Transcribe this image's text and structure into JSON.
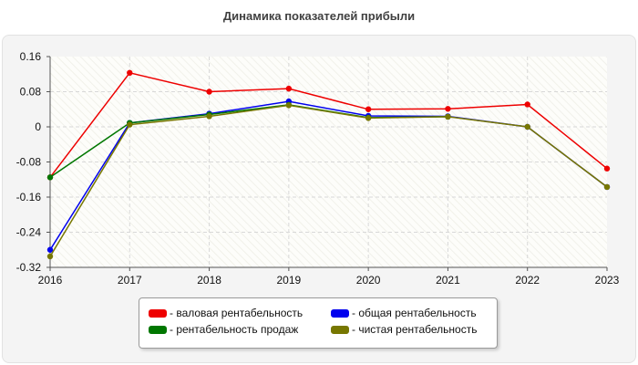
{
  "chart_data": {
    "type": "line",
    "title": "Динамика показателей прибыли",
    "xlabel": "",
    "ylabel": "",
    "x": [
      "2016",
      "2017",
      "2018",
      "2019",
      "2020",
      "2021",
      "2022",
      "2023"
    ],
    "ylim": [
      -0.32,
      0.16
    ],
    "y_ticks": [
      "0.16",
      "0.08",
      "0",
      "-0.08",
      "-0.16",
      "-0.24",
      "-0.32"
    ],
    "grid": true,
    "legend_position": "bottom",
    "series": [
      {
        "name": "- валовая рентабельность",
        "color": "#ee0000",
        "values": [
          -0.115,
          0.123,
          0.08,
          0.087,
          0.04,
          0.041,
          0.051,
          -0.095
        ]
      },
      {
        "name": "- общая рентабельность",
        "color": "#0000ee",
        "values": [
          -0.28,
          0.009,
          0.03,
          0.058,
          0.025,
          0.024,
          0.0,
          -0.137
        ]
      },
      {
        "name": "- рентабельность продаж",
        "color": "#007700",
        "values": [
          -0.115,
          0.009,
          0.028,
          0.05,
          0.021,
          0.023,
          null,
          null
        ]
      },
      {
        "name": "- чистая рентабельность",
        "color": "#777700",
        "values": [
          -0.295,
          0.005,
          0.024,
          0.049,
          0.02,
          0.023,
          0.0,
          -0.137
        ]
      }
    ]
  }
}
